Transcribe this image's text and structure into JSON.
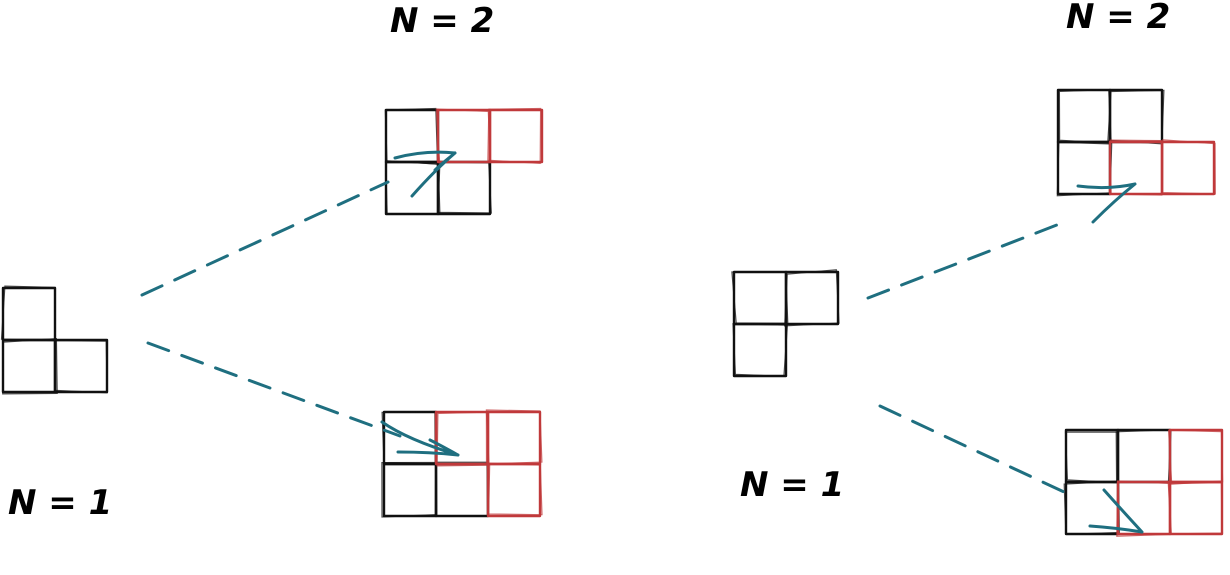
{
  "colors": {
    "ink": "#111111",
    "added_square": "#c0393b",
    "arrow": "#1f6f80",
    "background": "#ffffff"
  },
  "labels": {
    "left_source": "N = 1",
    "left_target": "N = 2",
    "right_source": "N = 1",
    "right_target": "N = 2"
  },
  "diagrams": [
    {
      "source": "left-l-tromino",
      "targets": [
        "left-top-tetromino",
        "left-bottom-tetromino"
      ]
    },
    {
      "source": "right-gamma-tromino",
      "targets": [
        "right-top-tetromino",
        "right-bottom-tetromino"
      ]
    }
  ]
}
